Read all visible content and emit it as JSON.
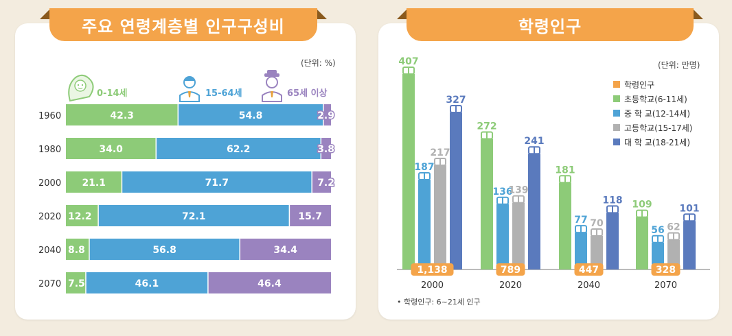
{
  "left_panel": {
    "title": "주요 연령계층별 인구구성비",
    "unit": "(단위: %)"
  },
  "right_panel": {
    "title": "학령인구",
    "unit": "(단위: 만명)",
    "footnote": "• 학령인구: 6~21세 인구"
  },
  "colors": {
    "green": "#8dcb78",
    "blue": "#4ea3d6",
    "purple": "#9a83bf",
    "gray": "#b1b1b1",
    "navy": "#5a7abd",
    "orange": "#f4a44a"
  },
  "chart_data": [
    {
      "type": "bar",
      "orientation": "horizontal",
      "stacked": true,
      "normalized": true,
      "unit": "%",
      "categories": [
        "1960",
        "1980",
        "2000",
        "2020",
        "2040",
        "2070"
      ],
      "series": [
        {
          "name": "0-14세",
          "color": "#8dcb78",
          "icon": "child-icon",
          "values": [
            42.3,
            34.0,
            21.1,
            12.2,
            8.8,
            7.5
          ]
        },
        {
          "name": "15-64세",
          "color": "#4ea3d6",
          "icon": "adult-icon",
          "values": [
            54.8,
            62.2,
            71.7,
            72.1,
            56.8,
            46.1
          ]
        },
        {
          "name": "65세 이상",
          "color": "#9a83bf",
          "icon": "elder-icon",
          "values": [
            2.9,
            3.8,
            7.2,
            15.7,
            34.4,
            46.4
          ]
        }
      ],
      "value_labels": [
        [
          "42.3",
          "34.0",
          "21.1",
          "12.2",
          "8.8",
          "7.5"
        ],
        [
          "54.8",
          "62.2",
          "71.7",
          "72.1",
          "56.8",
          "46.1"
        ],
        [
          "2.9",
          "3.8",
          "7.2",
          "15.7",
          "34.4",
          "46.4"
        ]
      ]
    },
    {
      "type": "bar",
      "orientation": "vertical",
      "unit": "만명",
      "categories": [
        "2000",
        "2020",
        "2040",
        "2070"
      ],
      "legend_position": "top-right",
      "total": {
        "name": "학령인구",
        "color": "#f4a44a",
        "values": [
          1138,
          789,
          447,
          328
        ],
        "labels": [
          "1,138",
          "789",
          "447",
          "328"
        ]
      },
      "series": [
        {
          "name": "초등학교(6-11세)",
          "color": "#8dcb78",
          "values": [
            407,
            272,
            181,
            109
          ]
        },
        {
          "name": "중 학 교(12-14세)",
          "color": "#4ea3d6",
          "values": [
            187,
            136,
            77,
            56
          ]
        },
        {
          "name": "고등학교(15-17세)",
          "color": "#b1b1b1",
          "values": [
            217,
            139,
            70,
            62
          ]
        },
        {
          "name": "대 학 교(18-21세)",
          "color": "#5a7abd",
          "values": [
            327,
            241,
            118,
            101
          ]
        }
      ],
      "ylim": [
        0,
        407
      ]
    }
  ]
}
